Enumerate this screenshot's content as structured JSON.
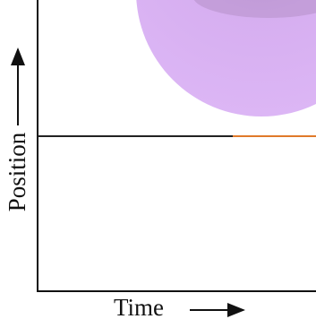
{
  "axes": {
    "y_label": "Position",
    "x_label": "Time"
  }
}
